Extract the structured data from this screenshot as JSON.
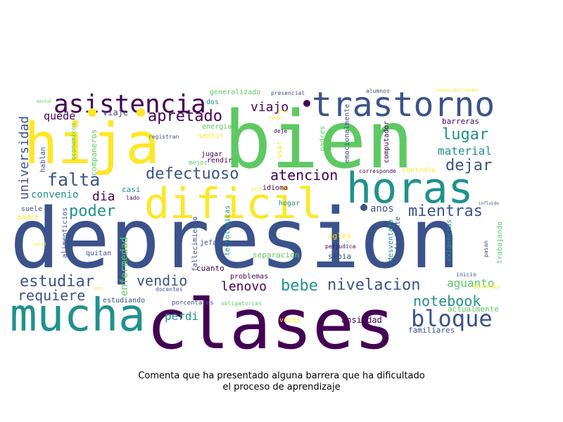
{
  "caption": {
    "line1": "Comenta que ha presentado alguna barrera que ha dificultado",
    "line2": "el proceso de aprendizaje"
  },
  "colors": {
    "background": "#ffffff",
    "palette": [
      "#440154",
      "#3b528b",
      "#21918c",
      "#5ec962",
      "#fde725"
    ]
  },
  "words": [
    "depresion",
    "bien",
    "clases",
    "hija",
    "mucha",
    "horas",
    "dificil",
    "trastorno",
    "asistencia",
    "bloque",
    "falta",
    "poder",
    "defectuoso",
    "apretado",
    "dejar",
    "lugar",
    "mientras",
    "nivelacion",
    "estudiar",
    "bebe",
    "notebook",
    "atencion",
    "vendio",
    "requiere",
    "viajo",
    "universidad",
    "material",
    "lenovo",
    "quede",
    "convenio",
    "dia",
    "perdi",
    "enfermedad",
    "aguanto",
    "anos",
    "ansiedad",
    "familiares",
    "viaje",
    "hablan",
    "companeros",
    "economicos",
    "casi",
    "idioma",
    "hogar",
    "usar",
    "padres",
    "emocionalmente",
    "computador",
    "controlo",
    "corresponde",
    "barreras",
    "suficiente",
    "desventaja",
    "exigencias",
    "trabajando",
    "pasan",
    "inicio",
    "absurdas",
    "actualmente",
    "igles",
    "perjudica",
    "sabia",
    "problemas",
    "separacion",
    "cuanto",
    "jefa",
    "fallecimiento",
    "tecnologicas",
    "mejor",
    "rendir",
    "jugar",
    "sentir",
    "energia",
    "dos",
    "generalizada",
    "presencial",
    "alumnos",
    "final",
    "deje",
    "solo",
    "lado",
    "registran",
    "quitan",
    "docentes",
    "estudiando",
    "porcentajes",
    "obligatorias",
    "veces",
    "suele",
    "madre",
    "alimenticios",
    "responsabilidades",
    "mental",
    "salud",
    "influido",
    "veo",
    "dijo"
  ]
}
